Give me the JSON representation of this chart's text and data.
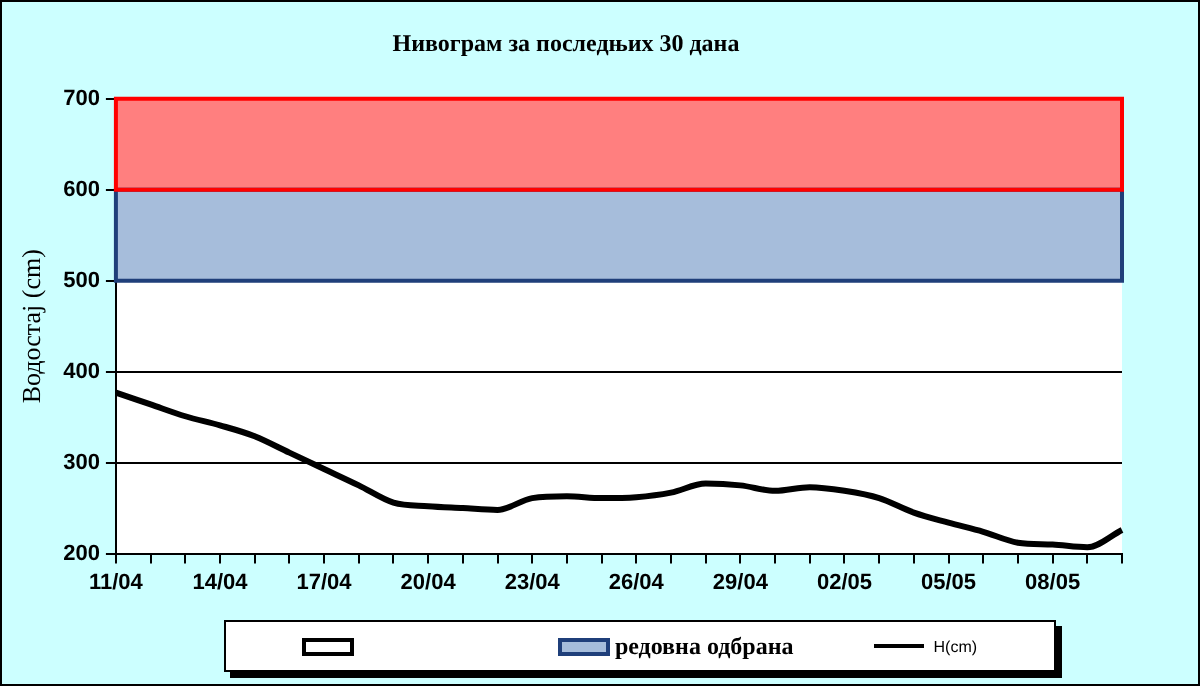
{
  "chart_data": {
    "type": "line",
    "title": "Нивограм за последњих 30 дана",
    "ylabel": "Водостај (cm)",
    "categories": [
      "11/04",
      null,
      null,
      "14/04",
      null,
      null,
      "17/04",
      null,
      null,
      "20/04",
      null,
      null,
      "23/04",
      null,
      null,
      "26/04",
      null,
      null,
      "29/04",
      null,
      null,
      "02/05",
      null,
      null,
      "05/05",
      null,
      null,
      "08/05",
      null,
      null
    ],
    "series": [
      {
        "name": "H(cm)",
        "color": "#000000",
        "values": [
          377,
          364,
          351,
          341,
          329,
          311,
          293,
          275,
          256,
          252,
          250,
          248,
          261,
          263,
          261,
          262,
          267,
          277,
          275,
          269,
          273,
          269,
          261,
          245,
          234,
          224,
          212,
          210,
          207,
          226
        ]
      }
    ],
    "ylim": [
      200,
      700
    ],
    "yticks": [
      200,
      300,
      400,
      500,
      600,
      700
    ],
    "grid": "y",
    "legend": "bottom",
    "marker": "none",
    "line_style": "solid",
    "bands": [
      {
        "axis": "y",
        "from": 200,
        "to": 500,
        "color": "#ffffff"
      },
      {
        "axis": "y",
        "from": 500,
        "to": 600,
        "label": "редовна одбрана",
        "color": "#a6bddb"
      },
      {
        "axis": "y",
        "from": 600,
        "to": 700,
        "color": "#ff7f7f"
      }
    ]
  }
}
